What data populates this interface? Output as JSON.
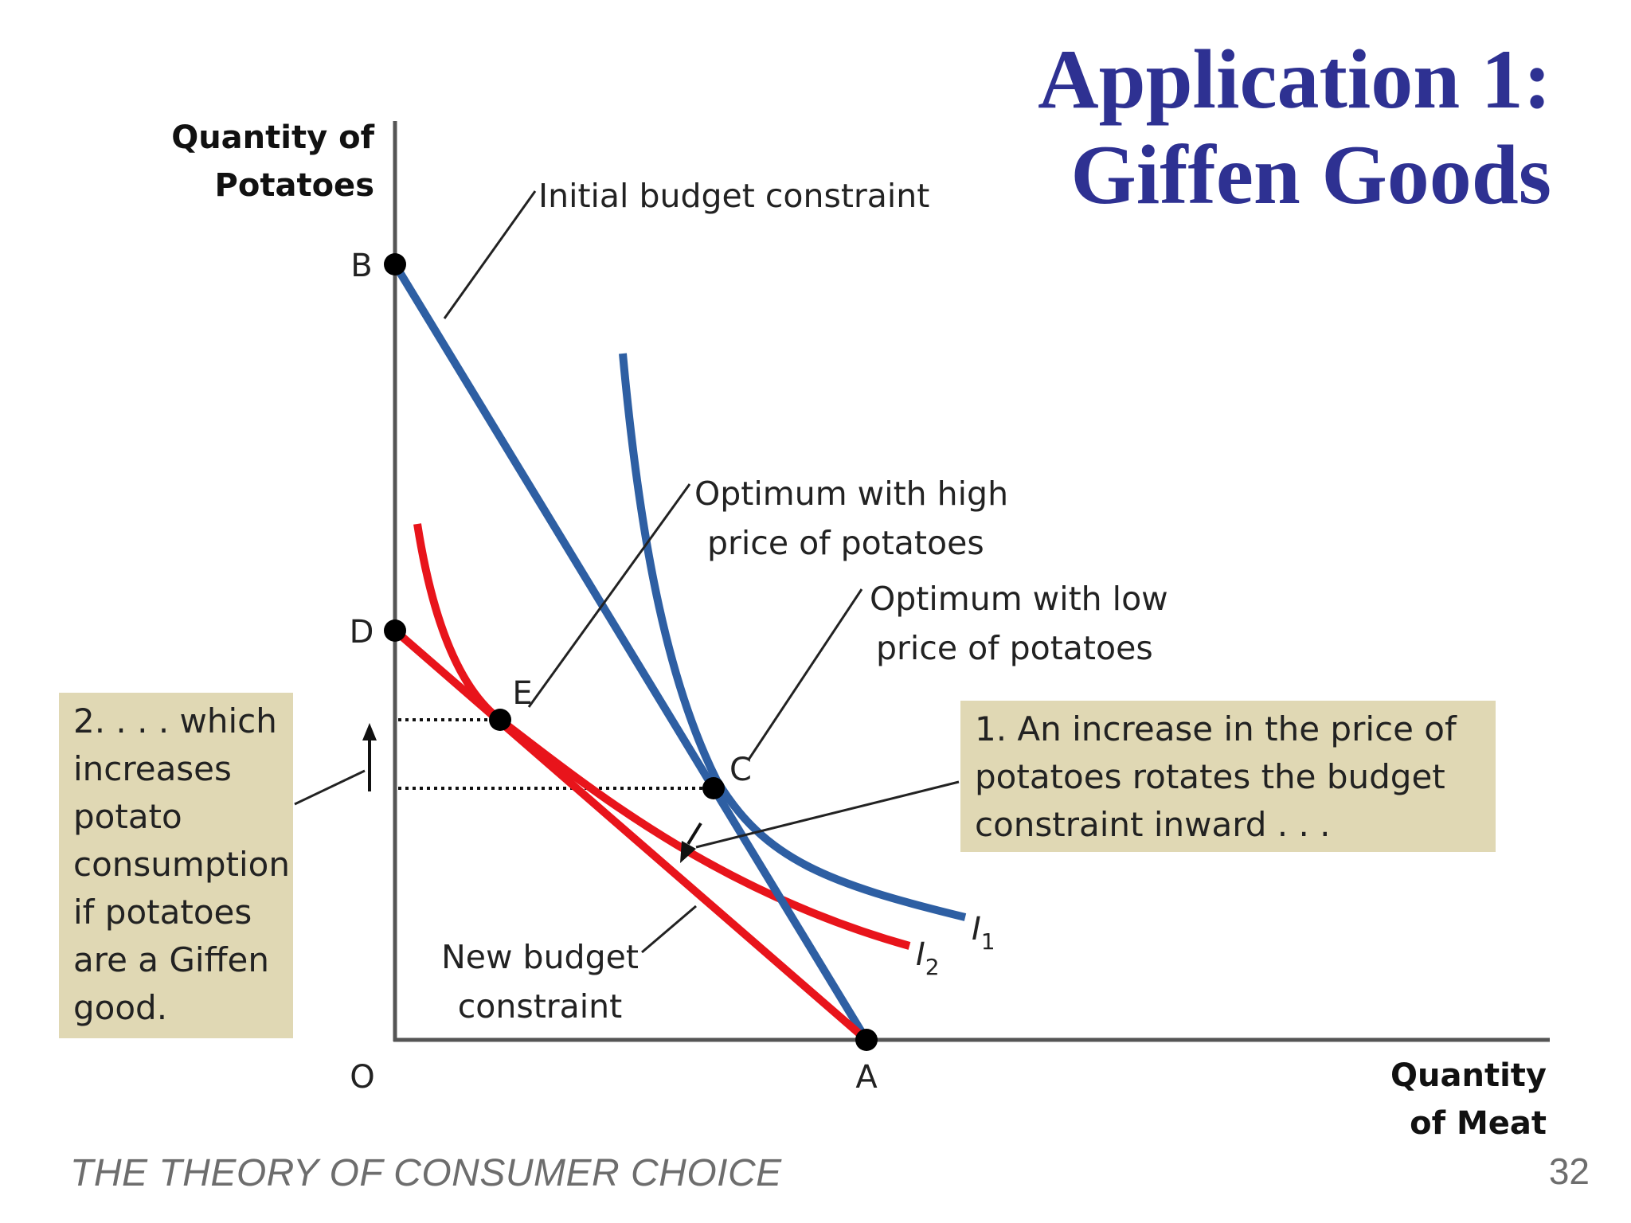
{
  "slide": {
    "title_line1": "Application 1:",
    "title_line2": "Giffen Goods",
    "footer_left": "THE THEORY OF CONSUMER CHOICE",
    "page_number": "32"
  },
  "diagram": {
    "y_axis_title": [
      "Quantity of",
      "Potatoes"
    ],
    "x_axis_title": [
      "Quantity",
      "of Meat"
    ],
    "origin_label": "O",
    "points": {
      "A": "A",
      "B": "B",
      "C": "C",
      "D": "D",
      "E": "E"
    },
    "annotations": {
      "initial_budget": "Initial budget constraint",
      "optimum_high": [
        "Optimum with high",
        "price of potatoes"
      ],
      "optimum_low": [
        "Optimum with low",
        "price of potatoes"
      ],
      "new_budget": [
        "New budget",
        "constraint"
      ]
    },
    "boxes": {
      "left": [
        "2. . . . which",
        "increases",
        "potato",
        "consumption",
        "if potatoes",
        "are a Giffen",
        "good."
      ],
      "right": [
        "1. An increase in the price of",
        "potatoes rotates the budget",
        "constraint inward . . ."
      ]
    },
    "curves": {
      "I1": {
        "letter": "I",
        "sub": "1"
      },
      "I2": {
        "letter": "I",
        "sub": "2"
      }
    },
    "colors": {
      "blue": "#2e5fa3",
      "red": "#e8141b",
      "box_fill": "#e0d8b4",
      "title": "#2e3192"
    }
  }
}
